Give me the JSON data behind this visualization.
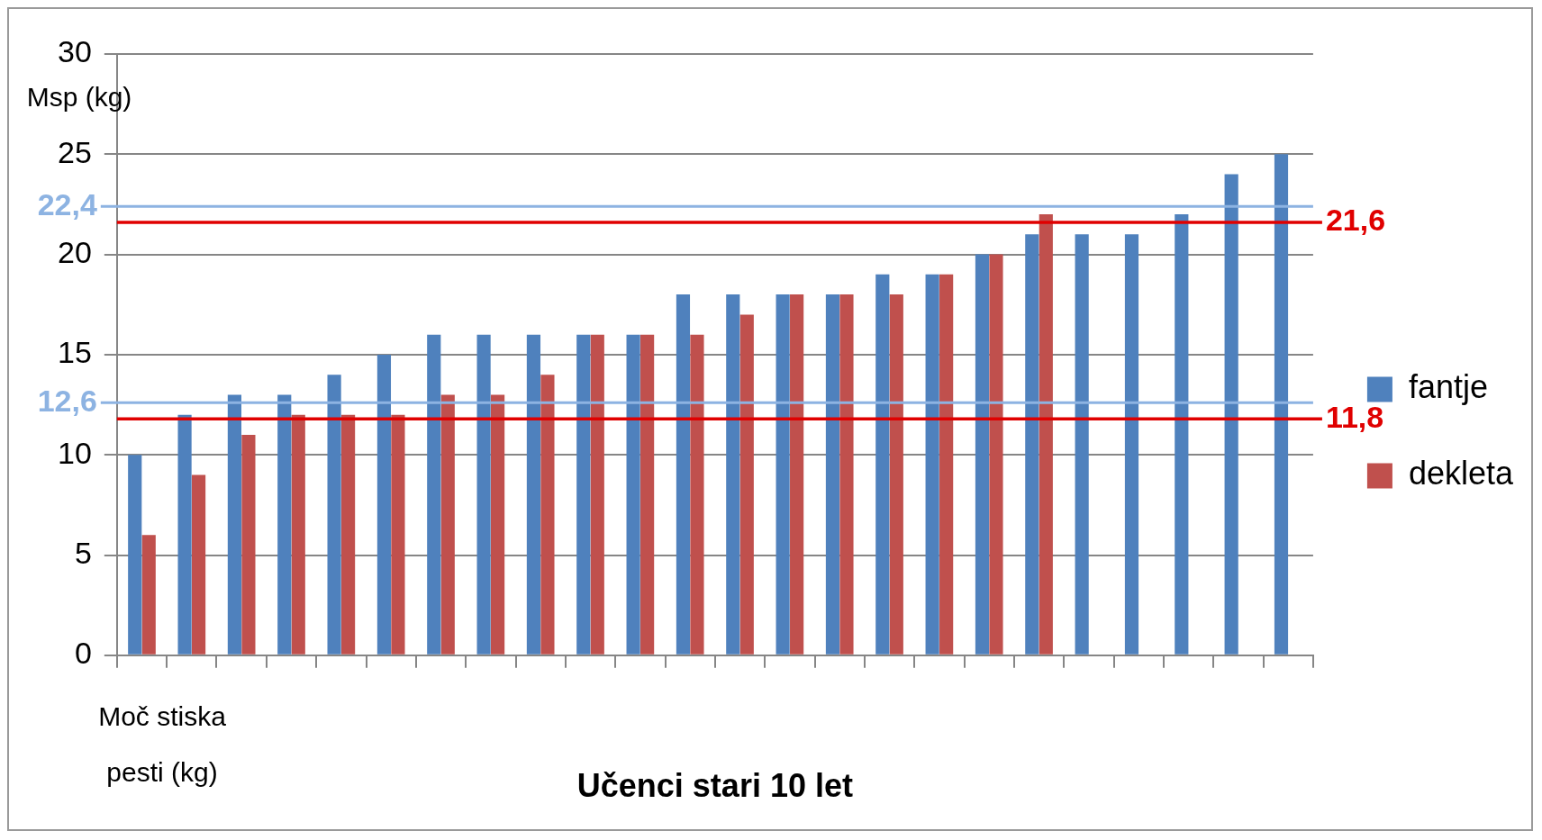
{
  "chart_data": {
    "type": "bar",
    "xlabel": "Učenci stari 10 let",
    "ylabel": "Msp (kg)",
    "categories": [
      null,
      null,
      null,
      null,
      null,
      null,
      null,
      null,
      null,
      null,
      null,
      null,
      null,
      null,
      null,
      null,
      null,
      null,
      null,
      null,
      null,
      null,
      null,
      null
    ],
    "series": [
      {
        "name": "fantje",
        "color": "#4f81bd",
        "values": [
          10,
          12,
          13,
          13,
          14,
          15,
          16,
          16,
          16,
          16,
          16,
          18,
          18,
          18,
          18,
          19,
          19,
          20,
          21,
          21,
          21,
          22,
          24,
          25
        ]
      },
      {
        "name": "dekleta",
        "color": "#c0504d",
        "values": [
          6,
          9,
          11,
          12,
          12,
          12,
          13,
          13,
          14,
          16,
          16,
          16,
          17,
          18,
          18,
          18,
          19,
          20,
          22,
          null,
          null,
          null,
          null,
          null
        ]
      }
    ],
    "ylim": [
      0,
      30
    ],
    "yticks": [
      0,
      5,
      10,
      15,
      20,
      25,
      30
    ],
    "grid": "y",
    "legend": "right",
    "ref_lines": [
      {
        "axis": "y",
        "value": 22.4,
        "label": "22,4",
        "color": "#8db3e2"
      },
      {
        "axis": "y",
        "value": 21.6,
        "label": "21,6",
        "color": "#e00000"
      },
      {
        "axis": "y",
        "value": 12.6,
        "label": "12,6",
        "color": "#8db3e2"
      },
      {
        "axis": "y",
        "value": 11.8,
        "label": "11,8",
        "color": "#e00000"
      }
    ],
    "annotations": [
      "Moč stiska pesti (kg)"
    ]
  }
}
